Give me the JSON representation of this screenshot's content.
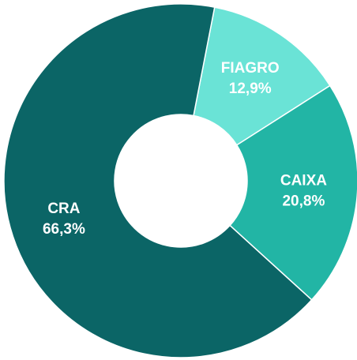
{
  "chart_data": {
    "type": "donut",
    "categories": [
      "FIAGRO",
      "CAIXA",
      "CRA"
    ],
    "values": [
      12.9,
      20.8,
      66.3
    ],
    "value_labels": [
      "12,9%",
      "20,8%",
      "66,3%"
    ],
    "colors": [
      "#6ae3d6",
      "#22b5a5",
      "#0b6566"
    ]
  }
}
